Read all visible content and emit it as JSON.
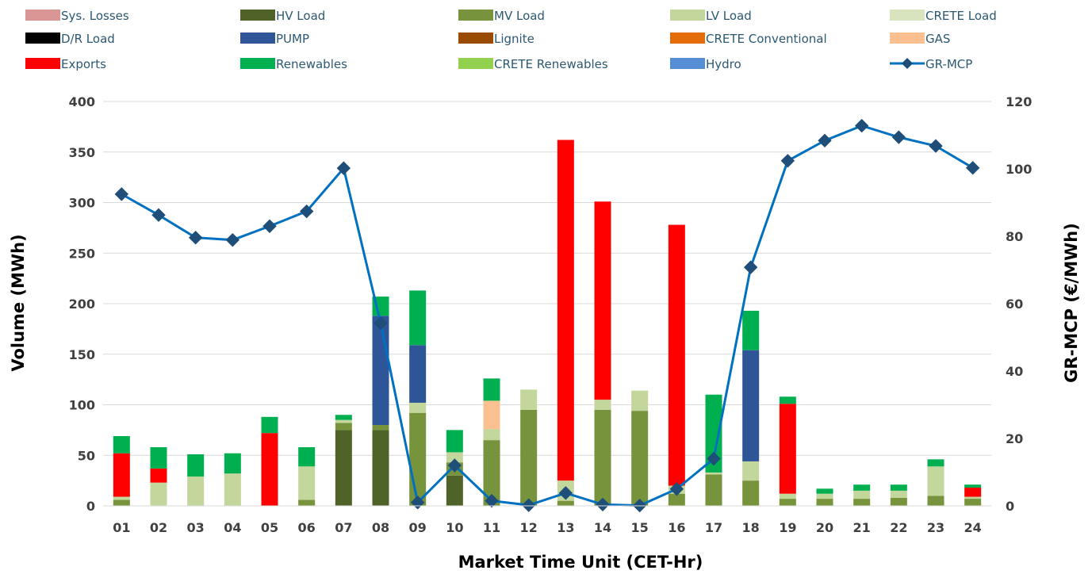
{
  "chart_data": {
    "type": "bar",
    "stacked": true,
    "xlabel": "Market Time Unit (CET-Hr)",
    "ylabel": "Volume (MWh)",
    "y2label": "GR-MCP (€/MWh)",
    "ylim": [
      0,
      400
    ],
    "y2lim": [
      0,
      120
    ],
    "yticks": [
      0,
      50,
      100,
      150,
      200,
      250,
      300,
      350,
      400
    ],
    "y2ticks": [
      0,
      20,
      40,
      60,
      80,
      100,
      120
    ],
    "grid": true,
    "legend_position": "top",
    "categories": [
      "01",
      "02",
      "03",
      "04",
      "05",
      "06",
      "07",
      "08",
      "09",
      "10",
      "11",
      "12",
      "13",
      "14",
      "15",
      "16",
      "17",
      "18",
      "19",
      "20",
      "21",
      "22",
      "23",
      "24"
    ],
    "series": [
      {
        "name": "Sys. Losses",
        "color": "#d99694",
        "values": [
          0,
          0,
          0,
          0,
          0,
          0,
          0,
          0,
          0,
          0,
          0,
          0,
          0,
          0,
          0,
          0,
          0,
          0,
          0,
          0,
          0,
          0,
          0,
          0
        ]
      },
      {
        "name": "HV Load",
        "color": "#4f6228",
        "values": [
          0,
          0,
          0,
          0,
          0,
          0,
          75,
          75,
          0,
          30,
          0,
          0,
          0,
          0,
          0,
          0,
          0,
          0,
          0,
          0,
          0,
          0,
          0,
          0
        ]
      },
      {
        "name": "MV Load",
        "color": "#77933c",
        "values": [
          6,
          0,
          0,
          0,
          0,
          6,
          7,
          5,
          92,
          13,
          65,
          95,
          5,
          95,
          94,
          12,
          31,
          25,
          7,
          7,
          7,
          8,
          10,
          7
        ]
      },
      {
        "name": "LV Load",
        "color": "#c3d69b",
        "values": [
          3,
          23,
          29,
          32,
          0,
          33,
          3,
          0,
          10,
          10,
          11,
          20,
          20,
          10,
          20,
          8,
          2,
          19,
          5,
          5,
          8,
          7,
          29,
          2
        ]
      },
      {
        "name": "CRETE Load",
        "color": "#d7e4bd",
        "values": [
          0,
          0,
          0,
          0,
          0,
          0,
          0,
          0,
          0,
          0,
          0,
          0,
          0,
          0,
          0,
          0,
          0,
          0,
          0,
          0,
          0,
          0,
          0,
          0
        ]
      },
      {
        "name": "D/R Load",
        "color": "#000000",
        "values": [
          0,
          0,
          0,
          0,
          0,
          0,
          0,
          0,
          0,
          0,
          0,
          0,
          0,
          0,
          0,
          0,
          0,
          0,
          0,
          0,
          0,
          0,
          0,
          0
        ]
      },
      {
        "name": "PUMP",
        "color": "#2e5597",
        "values": [
          0,
          0,
          0,
          0,
          0,
          0,
          0,
          108,
          57,
          0,
          0,
          0,
          0,
          0,
          0,
          0,
          0,
          110,
          0,
          0,
          0,
          0,
          0,
          0
        ]
      },
      {
        "name": "Lignite",
        "color": "#994c00",
        "values": [
          0,
          0,
          0,
          0,
          0,
          0,
          0,
          0,
          0,
          0,
          0,
          0,
          0,
          0,
          0,
          0,
          0,
          0,
          0,
          0,
          0,
          0,
          0,
          0
        ]
      },
      {
        "name": "CRETE Conventional",
        "color": "#e46c0a",
        "values": [
          0,
          0,
          0,
          0,
          0,
          0,
          0,
          0,
          0,
          0,
          0,
          0,
          0,
          0,
          0,
          0,
          0,
          0,
          0,
          0,
          0,
          0,
          0,
          0
        ]
      },
      {
        "name": "GAS",
        "color": "#fac090",
        "values": [
          0,
          0,
          0,
          0,
          0,
          0,
          0,
          0,
          0,
          0,
          28,
          0,
          0,
          0,
          0,
          0,
          0,
          0,
          0,
          0,
          0,
          0,
          0,
          0
        ]
      },
      {
        "name": "Exports",
        "color": "#ff0000",
        "values": [
          43,
          14,
          0,
          0,
          72,
          0,
          0,
          0,
          0,
          0,
          0,
          0,
          337,
          196,
          0,
          258,
          0,
          0,
          89,
          0,
          0,
          0,
          0,
          9
        ]
      },
      {
        "name": "Renewables",
        "color": "#00b050",
        "values": [
          17,
          21,
          22,
          20,
          16,
          19,
          5,
          19,
          54,
          22,
          22,
          0,
          0,
          0,
          0,
          0,
          77,
          39,
          7,
          5,
          6,
          6,
          7,
          3
        ]
      },
      {
        "name": "CRETE Renewables",
        "color": "#92d050",
        "values": [
          0,
          0,
          0,
          0,
          0,
          0,
          0,
          0,
          0,
          0,
          0,
          0,
          0,
          0,
          0,
          0,
          0,
          0,
          0,
          0,
          0,
          0,
          0,
          0
        ]
      },
      {
        "name": "Hydro",
        "color": "#558ed5",
        "values": [
          0,
          0,
          0,
          0,
          0,
          0,
          0,
          0,
          0,
          0,
          0,
          0,
          0,
          0,
          0,
          0,
          0,
          0,
          0,
          0,
          0,
          0,
          0,
          0
        ]
      }
    ],
    "line_series": {
      "name": "GR-MCP",
      "color": "#0070c0",
      "marker_color": "#1f4e79",
      "axis": "right",
      "values": [
        92.5,
        86.3,
        79.6,
        78.9,
        83.0,
        87.4,
        100.2,
        54.2,
        1.0,
        12.0,
        1.5,
        0.2,
        3.8,
        0.4,
        0.1,
        5.0,
        14.0,
        70.8,
        102.4,
        108.4,
        112.8,
        109.4,
        106.8,
        100.3
      ]
    }
  }
}
